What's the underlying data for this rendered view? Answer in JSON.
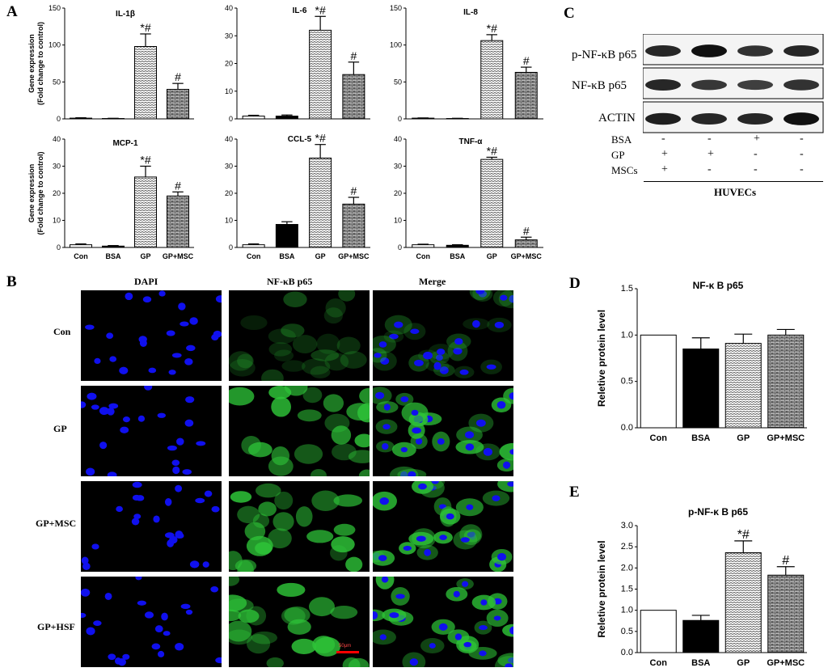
{
  "panels": {
    "A": "A",
    "B": "B",
    "C": "C",
    "D": "D",
    "E": "E"
  },
  "colors": {
    "hatch": "#555555",
    "bsa_bar": "#000000",
    "con_bar": "#ffffff",
    "scale_bar": "#ff0000"
  },
  "chart_data": [
    {
      "id": "il1b",
      "type": "bar",
      "title": "IL-1β",
      "categories": [
        "Con",
        "BSA",
        "GP",
        "GP+MSC"
      ],
      "values": [
        1,
        0.5,
        98,
        40
      ],
      "errors": [
        0.5,
        0.3,
        17,
        8
      ],
      "marks": [
        "",
        "",
        "*#",
        "#"
      ],
      "ylim": [
        0,
        150
      ],
      "yticks": [
        0,
        50,
        100,
        150
      ],
      "ylabel": [
        "Gene expression",
        "(Fold change to control)"
      ],
      "show_xlabels": false
    },
    {
      "id": "il6",
      "type": "bar",
      "title": "IL-6",
      "categories": [
        "Con",
        "BSA",
        "GP",
        "GP+MSC"
      ],
      "values": [
        1,
        1,
        32,
        16
      ],
      "errors": [
        0.3,
        0.4,
        5,
        4.5
      ],
      "marks": [
        "",
        "",
        "*#",
        "#"
      ],
      "ylim": [
        0,
        40
      ],
      "yticks": [
        0,
        10,
        20,
        30,
        40
      ],
      "ylabel": [],
      "show_xlabels": false
    },
    {
      "id": "il8",
      "type": "bar",
      "title": "IL-8",
      "categories": [
        "Con",
        "BSA",
        "GP",
        "GP+MSC"
      ],
      "values": [
        1,
        0.5,
        106,
        63
      ],
      "errors": [
        0.3,
        0.3,
        8,
        7
      ],
      "marks": [
        "",
        "",
        "*#",
        "#"
      ],
      "ylim": [
        0,
        150
      ],
      "yticks": [
        0,
        50,
        100,
        150
      ],
      "ylabel": [],
      "show_xlabels": false
    },
    {
      "id": "mcp1",
      "type": "bar",
      "title": "MCP-1",
      "categories": [
        "Con",
        "BSA",
        "GP",
        "GP+MSC"
      ],
      "values": [
        1,
        0.5,
        26,
        19
      ],
      "errors": [
        0.3,
        0.2,
        4,
        1.5
      ],
      "marks": [
        "",
        "",
        "*#",
        "#"
      ],
      "ylim": [
        0,
        40
      ],
      "yticks": [
        0,
        10,
        20,
        30,
        40
      ],
      "ylabel": [
        "Gene expression",
        "(Fold change to control)"
      ],
      "show_xlabels": true
    },
    {
      "id": "ccl5",
      "type": "bar",
      "title": "CCL-5",
      "categories": [
        "Con",
        "BSA",
        "GP",
        "GP+MSC"
      ],
      "values": [
        1,
        8.5,
        33,
        16
      ],
      "errors": [
        0.3,
        1,
        5,
        2.5
      ],
      "marks": [
        "",
        "",
        "*#",
        "#"
      ],
      "ylim": [
        0,
        40
      ],
      "yticks": [
        0,
        10,
        20,
        30,
        40
      ],
      "ylabel": [],
      "show_xlabels": true
    },
    {
      "id": "tnfa",
      "type": "bar",
      "title": "TNF-α",
      "categories": [
        "Con",
        "BSA",
        "GP",
        "GP+MSC"
      ],
      "values": [
        1,
        0.8,
        32.5,
        2.8
      ],
      "errors": [
        0.2,
        0.2,
        0.8,
        1
      ],
      "marks": [
        "",
        "",
        "*#",
        "#"
      ],
      "ylim": [
        0,
        40
      ],
      "yticks": [
        0,
        10,
        20,
        30,
        40
      ],
      "ylabel": [],
      "show_xlabels": true
    },
    {
      "id": "d",
      "type": "bar",
      "title": "NF-κ B p65",
      "categories": [
        "Con",
        "BSA",
        "GP",
        "GP+MSC"
      ],
      "values": [
        1.0,
        0.85,
        0.91,
        1.0
      ],
      "errors": [
        0,
        0.12,
        0.1,
        0.06
      ],
      "marks": [
        "",
        "",
        "",
        ""
      ],
      "ylim": [
        0,
        1.5
      ],
      "yticks": [
        "0.0",
        "0.5",
        "1.0",
        "1.5"
      ],
      "ylabel": [
        "Reletive protein level"
      ],
      "show_xlabels": true
    },
    {
      "id": "e",
      "type": "bar",
      "title": "p-NF-κ B p65",
      "categories": [
        "Con",
        "BSA",
        "GP",
        "GP+MSC"
      ],
      "values": [
        1.0,
        0.76,
        2.36,
        1.83
      ],
      "errors": [
        0,
        0.12,
        0.28,
        0.2
      ],
      "marks": [
        "",
        "",
        "*#",
        "#"
      ],
      "ylim": [
        0,
        3.0
      ],
      "yticks": [
        "0.0",
        "0.5",
        "1.0",
        "1.5",
        "2.0",
        "2.5",
        "3.0"
      ],
      "ylabel": [
        "Reletive protein level"
      ],
      "show_xlabels": true
    }
  ],
  "panel_b": {
    "columns": [
      "DAPI",
      "NF-κB p65",
      "Merge"
    ],
    "rows": [
      "Con",
      "GP",
      "GP+MSC",
      "GP+HSF"
    ],
    "scale_label": "50μm"
  },
  "panel_c": {
    "blot_labels": [
      "p-NF-κB p65",
      "NF-κB p65",
      "ACTIN"
    ],
    "treatments": [
      {
        "name": "BSA",
        "signs": [
          "-",
          "-",
          "+",
          "-"
        ]
      },
      {
        "name": "GP",
        "signs": [
          "+",
          "+",
          "-",
          "-"
        ]
      },
      {
        "name": "MSCs",
        "signs": [
          "+",
          "-",
          "-",
          "-"
        ]
      }
    ],
    "cell_label": "HUVECs"
  }
}
